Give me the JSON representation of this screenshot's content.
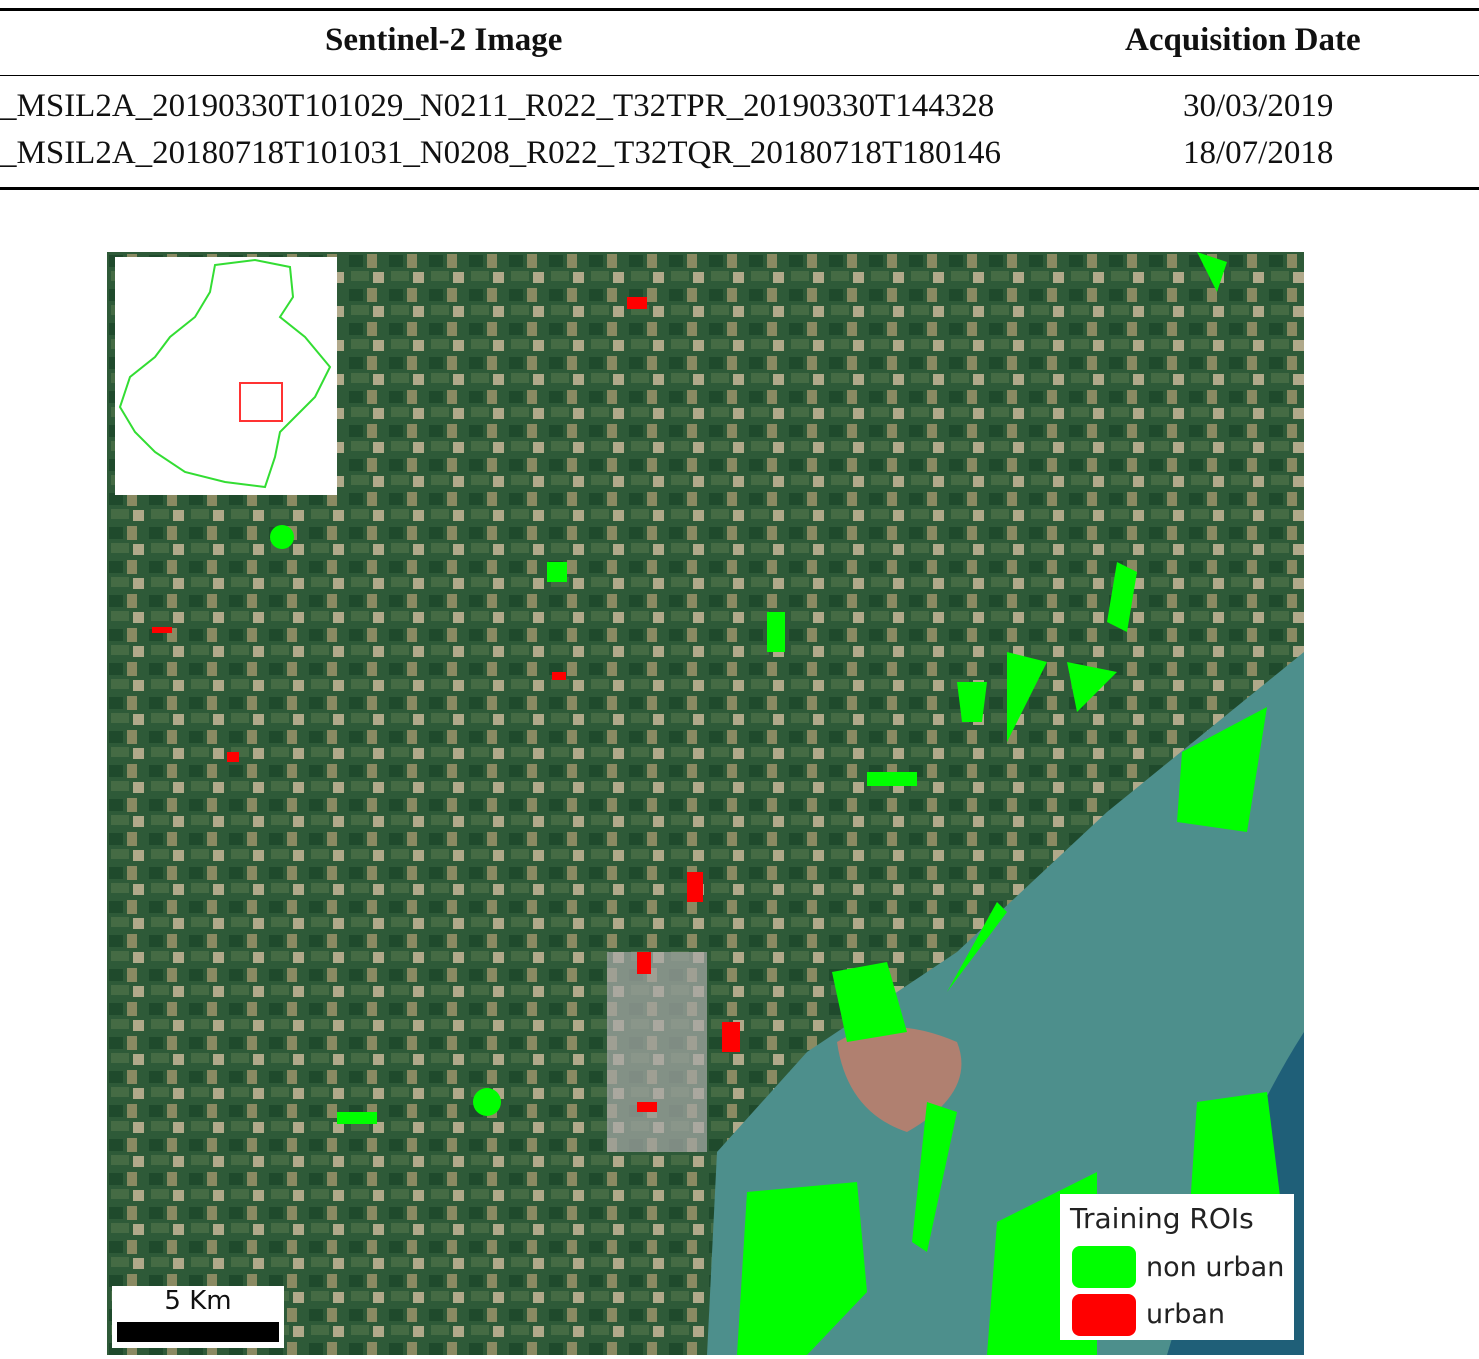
{
  "table": {
    "headers": [
      "Sentinel-2 Image",
      "Acquisition Date"
    ],
    "rows": [
      {
        "image": "_MSIL2A_20190330T101029_N0211_R022_T32TPR_20190330T144328",
        "date": "30/03/2019"
      },
      {
        "image": "_MSIL2A_20180718T101031_N0208_R022_T32TQR_20180718T180146",
        "date": "18/07/2018"
      }
    ]
  },
  "figure": {
    "scale_bar": "5 Km",
    "legend": {
      "title": "Training ROIs",
      "items": [
        {
          "label": "non urban",
          "color": "#00ff00"
        },
        {
          "label": "urban",
          "color": "#ff0000"
        }
      ]
    },
    "colors": {
      "land": "#2f5a3a",
      "lagoon": "#4d8f8c",
      "sea": "#1f5f78",
      "inset_outline": "#33dd33",
      "inset_box": "#ff3333"
    }
  }
}
